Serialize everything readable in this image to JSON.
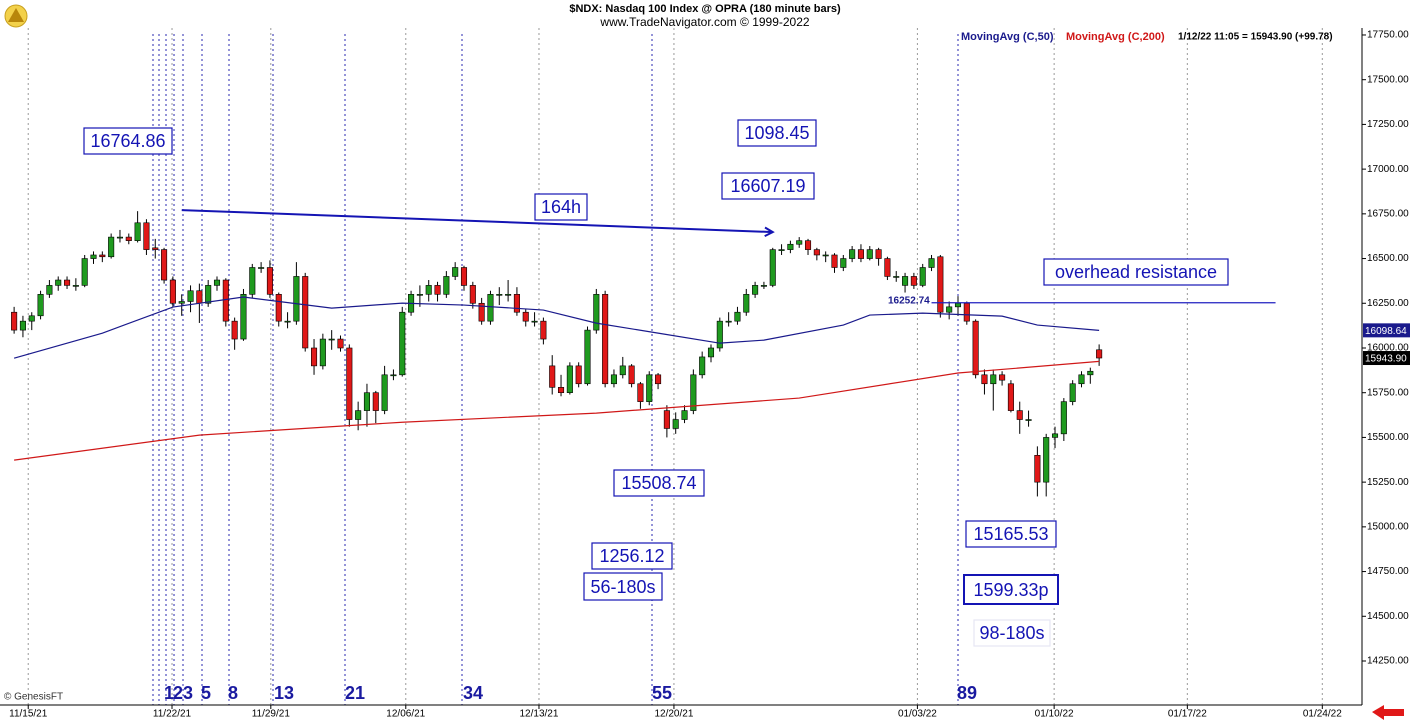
{
  "chart_data": {
    "type": "candlestick",
    "title": "$NDX:  Nasdaq 100 Index @ OPRA  (180 minute bars)",
    "subtitle": "www.TradeNavigator.com © 1999-2022",
    "quote": "1/12/22 11:05 = 15943.90 (+99.78)",
    "copyright": "© GenesisFT",
    "up_color": "#1f9a1f",
    "down_color": "#e01818",
    "ylim": [
      14004,
      17789
    ],
    "yticks": [
      {
        "value": 14250,
        "label": "14250.00"
      },
      {
        "value": 14500,
        "label": "14500.00"
      },
      {
        "value": 14750,
        "label": "14750.00"
      },
      {
        "value": 15000,
        "label": "15000.00"
      },
      {
        "value": 15250,
        "label": "15250.00"
      },
      {
        "value": 15500,
        "label": "15500.00"
      },
      {
        "value": 15750,
        "label": "15750.00"
      },
      {
        "value": 16000,
        "label": "16000.00"
      },
      {
        "value": 16250,
        "label": "16250.00"
      },
      {
        "value": 16500,
        "label": "16500.00"
      },
      {
        "value": 16750,
        "label": "16750.00"
      },
      {
        "value": 17000,
        "label": "17000.00"
      },
      {
        "value": 17250,
        "label": "17250.00"
      },
      {
        "value": 17500,
        "label": "17500.00"
      },
      {
        "value": 17750,
        "label": "17750.00"
      }
    ],
    "xlim": [
      -1.6,
      152.8
    ],
    "xticks": [
      {
        "value": 1.6,
        "label": "11/15/21"
      },
      {
        "value": 17.9,
        "label": "11/22/21"
      },
      {
        "value": 29.1,
        "label": "11/29/21"
      },
      {
        "value": 44.4,
        "label": "12/06/21"
      },
      {
        "value": 59.5,
        "label": "12/13/21"
      },
      {
        "value": 74.8,
        "label": "12/20/21"
      },
      {
        "value": 102.4,
        "label": "01/03/22"
      },
      {
        "value": 117.9,
        "label": "01/10/22"
      },
      {
        "value": 133,
        "label": "01/17/22"
      },
      {
        "value": 148.3,
        "label": "01/24/22"
      }
    ],
    "grid": true,
    "last_price": {
      "value": 15943.9,
      "label": "15943.90"
    },
    "ohlc": [
      [
        16200,
        16230,
        16080,
        16100
      ],
      [
        16100,
        16180,
        16060,
        16150
      ],
      [
        16150,
        16200,
        16100,
        16180
      ],
      [
        16180,
        16320,
        16160,
        16300
      ],
      [
        16300,
        16380,
        16280,
        16350
      ],
      [
        16350,
        16400,
        16320,
        16380
      ],
      [
        16380,
        16400,
        16330,
        16350
      ],
      [
        16350,
        16390,
        16320,
        16350
      ],
      [
        16350,
        16520,
        16340,
        16500
      ],
      [
        16500,
        16540,
        16470,
        16520
      ],
      [
        16520,
        16540,
        16480,
        16510
      ],
      [
        16510,
        16640,
        16500,
        16620
      ],
      [
        16620,
        16660,
        16590,
        16620
      ],
      [
        16620,
        16640,
        16580,
        16600
      ],
      [
        16600,
        16765,
        16590,
        16700
      ],
      [
        16700,
        16720,
        16520,
        16550
      ],
      [
        16560,
        16610,
        16500,
        16550
      ],
      [
        16550,
        16560,
        16360,
        16380
      ],
      [
        16380,
        16400,
        16230,
        16250
      ],
      [
        16250,
        16300,
        16180,
        16260
      ],
      [
        16260,
        16350,
        16200,
        16320
      ],
      [
        16320,
        16360,
        16140,
        16250
      ],
      [
        16250,
        16380,
        16230,
        16350
      ],
      [
        16350,
        16400,
        16320,
        16380
      ],
      [
        16380,
        16390,
        16120,
        16150
      ],
      [
        16150,
        16170,
        15990,
        16050
      ],
      [
        16050,
        16330,
        16040,
        16300
      ],
      [
        16300,
        16470,
        16280,
        16450
      ],
      [
        16450,
        16480,
        16420,
        16450
      ],
      [
        16450,
        16490,
        16280,
        16300
      ],
      [
        16300,
        16310,
        16120,
        16150
      ],
      [
        16150,
        16200,
        16110,
        16150
      ],
      [
        16150,
        16480,
        16130,
        16400
      ],
      [
        16400,
        16420,
        15980,
        16000
      ],
      [
        16000,
        16050,
        15850,
        15900
      ],
      [
        15900,
        16080,
        15880,
        16050
      ],
      [
        16050,
        16100,
        15990,
        16050
      ],
      [
        16050,
        16070,
        15980,
        16000
      ],
      [
        16000,
        16020,
        15560,
        15600
      ],
      [
        15600,
        15700,
        15540,
        15650
      ],
      [
        15650,
        15800,
        15560,
        15750
      ],
      [
        15750,
        15760,
        15580,
        15650
      ],
      [
        15650,
        15900,
        15630,
        15850
      ],
      [
        15850,
        15880,
        15820,
        15850
      ],
      [
        15850,
        16230,
        15840,
        16200
      ],
      [
        16200,
        16320,
        16180,
        16300
      ],
      [
        16300,
        16350,
        16230,
        16300
      ],
      [
        16300,
        16380,
        16260,
        16350
      ],
      [
        16350,
        16370,
        16260,
        16300
      ],
      [
        16300,
        16430,
        16280,
        16400
      ],
      [
        16400,
        16480,
        16380,
        16450
      ],
      [
        16450,
        16460,
        16320,
        16350
      ],
      [
        16350,
        16370,
        16220,
        16250
      ],
      [
        16250,
        16280,
        16130,
        16150
      ],
      [
        16150,
        16320,
        16130,
        16300
      ],
      [
        16300,
        16340,
        16240,
        16300
      ],
      [
        16300,
        16380,
        16260,
        16300
      ],
      [
        16300,
        16340,
        16180,
        16200
      ],
      [
        16200,
        16220,
        16120,
        16150
      ],
      [
        16150,
        16200,
        16120,
        16150
      ],
      [
        16150,
        16170,
        16020,
        16050
      ],
      [
        15900,
        15960,
        15740,
        15780
      ],
      [
        15780,
        15850,
        15730,
        15750
      ],
      [
        15750,
        15920,
        15740,
        15900
      ],
      [
        15900,
        15920,
        15780,
        15800
      ],
      [
        15800,
        16120,
        15790,
        16100
      ],
      [
        16100,
        16330,
        16080,
        16300
      ],
      [
        16300,
        16320,
        15780,
        15800
      ],
      [
        15800,
        15880,
        15780,
        15850
      ],
      [
        15850,
        15950,
        15830,
        15900
      ],
      [
        15900,
        15910,
        15780,
        15800
      ],
      [
        15800,
        15810,
        15660,
        15700
      ],
      [
        15700,
        15870,
        15680,
        15850
      ],
      [
        15850,
        15860,
        15770,
        15800
      ],
      [
        15650,
        15680,
        15500,
        15550
      ],
      [
        15550,
        15640,
        15520,
        15600
      ],
      [
        15600,
        15680,
        15580,
        15650
      ],
      [
        15650,
        15880,
        15630,
        15850
      ],
      [
        15850,
        15980,
        15830,
        15950
      ],
      [
        15950,
        16020,
        15920,
        16000
      ],
      [
        16000,
        16170,
        15980,
        16150
      ],
      [
        16150,
        16200,
        16120,
        16150
      ],
      [
        16150,
        16230,
        16130,
        16200
      ],
      [
        16200,
        16330,
        16180,
        16300
      ],
      [
        16300,
        16370,
        16280,
        16350
      ],
      [
        16350,
        16370,
        16330,
        16350
      ],
      [
        16350,
        16560,
        16340,
        16550
      ],
      [
        16550,
        16580,
        16520,
        16550
      ],
      [
        16550,
        16600,
        16530,
        16580
      ],
      [
        16580,
        16620,
        16560,
        16600
      ],
      [
        16600,
        16610,
        16520,
        16550
      ],
      [
        16550,
        16560,
        16490,
        16520
      ],
      [
        16520,
        16540,
        16480,
        16520
      ],
      [
        16520,
        16530,
        16420,
        16450
      ],
      [
        16450,
        16520,
        16430,
        16500
      ],
      [
        16500,
        16570,
        16480,
        16550
      ],
      [
        16550,
        16580,
        16480,
        16500
      ],
      [
        16500,
        16570,
        16490,
        16550
      ],
      [
        16550,
        16560,
        16460,
        16500
      ],
      [
        16500,
        16510,
        16380,
        16400
      ],
      [
        16400,
        16430,
        16370,
        16400
      ],
      [
        16350,
        16420,
        16310,
        16400
      ],
      [
        16400,
        16420,
        16330,
        16350
      ],
      [
        16350,
        16470,
        16340,
        16450
      ],
      [
        16450,
        16520,
        16430,
        16500
      ],
      [
        16510,
        16520,
        16170,
        16200
      ],
      [
        16200,
        16260,
        16160,
        16230
      ],
      [
        16230,
        16290,
        16180,
        16250
      ],
      [
        16250,
        16260,
        16130,
        16150
      ],
      [
        16150,
        16160,
        15830,
        15850
      ],
      [
        15850,
        15880,
        15740,
        15800
      ],
      [
        15800,
        15880,
        15650,
        15850
      ],
      [
        15850,
        15870,
        15790,
        15820
      ],
      [
        15800,
        15820,
        15640,
        15650
      ],
      [
        15650,
        15700,
        15520,
        15600
      ],
      [
        15600,
        15650,
        15560,
        15600
      ],
      [
        15400,
        15450,
        15170,
        15250
      ],
      [
        15250,
        15520,
        15170,
        15500
      ],
      [
        15500,
        15560,
        15440,
        15520
      ],
      [
        15520,
        15720,
        15480,
        15700
      ],
      [
        15700,
        15820,
        15680,
        15800
      ],
      [
        15800,
        15870,
        15780,
        15850
      ],
      [
        15850,
        15890,
        15800,
        15870
      ],
      [
        15990,
        16020,
        15900,
        15943.9
      ]
    ],
    "series": [
      {
        "name": "MovingAvg (C,50)",
        "color": "#1a1a8c",
        "x": [
          0,
          10,
          18,
          26,
          36,
          44,
          51,
          60,
          66,
          73,
          80,
          85,
          94,
          97,
          103,
          112,
          116,
          123
        ],
        "values": [
          15943,
          16083,
          16229,
          16285,
          16223,
          16251,
          16240,
          16212,
          16139,
          16083,
          16027,
          16044,
          16128,
          16184,
          16195,
          16178,
          16128,
          16098.64
        ]
      },
      {
        "name": "MovingAvg (C,200)",
        "color": "#d01818",
        "x": [
          0,
          21,
          44,
          66,
          89,
          107,
          123
        ],
        "values": [
          15373,
          15513,
          15585,
          15636,
          15720,
          15860,
          15925
        ]
      }
    ],
    "resistance": {
      "value": 16252.74,
      "x": [
        104,
        143
      ]
    },
    "arrow": {
      "x": [
        19,
        86
      ],
      "values": [
        16771,
        16648
      ]
    },
    "annotations": [
      "16764.86",
      "1098.45",
      "16607.19",
      "164h",
      "overhead resistance",
      "15508.74",
      "1256.12",
      "56-180s",
      "15165.53",
      "1599.33p",
      "98-180s",
      "16252.74"
    ],
    "cycle_labels": [
      "1",
      "2",
      "3",
      "5",
      "8",
      "13",
      "21",
      "34",
      "55",
      "89"
    ]
  }
}
